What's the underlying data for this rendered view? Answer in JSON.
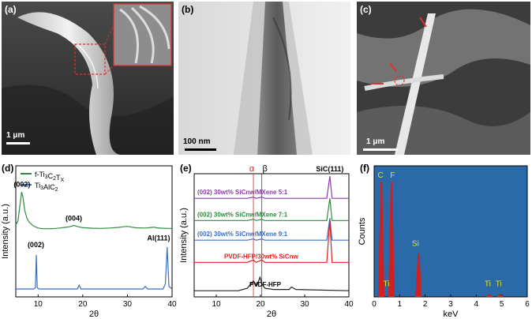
{
  "figure": {
    "panels": {
      "a": {
        "label": "(a)",
        "scale": "1 μm"
      },
      "b": {
        "label": "(b)",
        "scale": "100 nm"
      },
      "c": {
        "label": "(c)",
        "scale": "1 μm"
      },
      "d": {
        "label": "(d)"
      },
      "e": {
        "label": "(e)"
      },
      "f": {
        "label": "(f)"
      }
    },
    "colors": {
      "green": "#2e8b3f",
      "blue": "#3a6fc6",
      "purple": "#8a3fa8",
      "red": "#e02020",
      "black": "#222222",
      "eds_bg": "#2b6aa8",
      "eds_peak": "#d21f1f",
      "eds_label": "#f0e020"
    }
  },
  "chart_data": [
    {
      "type": "line",
      "panel": "d",
      "xlabel": "2θ",
      "ylabel": "Intensity (a.u.)",
      "xlim": [
        5,
        40
      ],
      "xticks": [
        10,
        20,
        30,
        40
      ],
      "legend": [
        "f-Ti3C2TX",
        "Ti3AlC2"
      ],
      "series": [
        {
          "name": "f-Ti3C2TX",
          "color": "#2e8b3f",
          "x": [
            5,
            5.5,
            6,
            6.3,
            6.6,
            7,
            7.5,
            8,
            9,
            10,
            11,
            12,
            13,
            14,
            15,
            16,
            17,
            18,
            19,
            20,
            22,
            24,
            26,
            28,
            29,
            30,
            31,
            32,
            34,
            35.5,
            36,
            36.5,
            37.5,
            39,
            40
          ],
          "y": [
            0.55,
            0.58,
            0.72,
            0.8,
            0.76,
            0.66,
            0.6,
            0.57,
            0.54,
            0.525,
            0.52,
            0.52,
            0.52,
            0.522,
            0.526,
            0.53,
            0.535,
            0.545,
            0.535,
            0.528,
            0.524,
            0.522,
            0.525,
            0.53,
            0.535,
            0.538,
            0.532,
            0.527,
            0.525,
            0.53,
            0.532,
            0.527,
            0.524,
            0.522,
            0.522
          ]
        },
        {
          "name": "Ti3AlC2",
          "color": "#3a6fc6",
          "x": [
            5,
            9,
            9.4,
            9.6,
            9.8,
            10.2,
            14,
            18.8,
            19.2,
            19.6,
            25,
            33.5,
            34,
            34.5,
            38,
            38.5,
            38.9,
            39.3,
            40
          ],
          "y": [
            0.06,
            0.06,
            0.07,
            0.32,
            0.07,
            0.06,
            0.06,
            0.06,
            0.09,
            0.06,
            0.06,
            0.06,
            0.08,
            0.06,
            0.06,
            0.1,
            0.38,
            0.08,
            0.06
          ]
        }
      ],
      "annotations": [
        {
          "text": "(002)",
          "x": 6.4,
          "y": 0.84
        },
        {
          "text": "(004)",
          "x": 18,
          "y": 0.58
        },
        {
          "text": "(002)",
          "x": 9.5,
          "y": 0.38
        },
        {
          "text": "Al(111)",
          "x": 37,
          "y": 0.43
        }
      ]
    },
    {
      "type": "line",
      "panel": "e",
      "xlabel": "2θ",
      "ylabel": "Intensity (a.u.)",
      "xlim": [
        5,
        40
      ],
      "xticks": [
        10,
        20,
        30,
        40
      ],
      "top_labels": [
        "α",
        "β",
        "SiC(111)"
      ],
      "reference_lines_x": [
        18.4,
        20.3
      ],
      "series": [
        {
          "name": "30wt% SiCnw/MXene 5:1",
          "color": "#8a3fa8",
          "x": [
            5,
            17,
            18.4,
            19,
            20.3,
            21,
            35,
            35.7,
            36.2,
            40
          ],
          "y": [
            0.8,
            0.8,
            0.81,
            0.8,
            0.81,
            0.8,
            0.8,
            0.98,
            0.8,
            0.8
          ]
        },
        {
          "name": "30wt% SiCnw/MXene 7:1",
          "color": "#2e8b3f",
          "x": [
            5,
            17,
            18.4,
            19,
            20.3,
            21,
            35,
            35.7,
            36.2,
            40
          ],
          "y": [
            0.62,
            0.62,
            0.63,
            0.62,
            0.63,
            0.62,
            0.62,
            0.8,
            0.62,
            0.62
          ]
        },
        {
          "name": "30wt% SiCnw/MXene 9:1",
          "color": "#3a6fc6",
          "x": [
            5,
            17,
            18.4,
            19,
            20.3,
            21,
            35,
            35.7,
            36.2,
            40
          ],
          "y": [
            0.46,
            0.46,
            0.47,
            0.46,
            0.47,
            0.46,
            0.46,
            0.64,
            0.46,
            0.46
          ]
        },
        {
          "name": "PVDF-HFP/30wt% SiCnw",
          "color": "#e02020",
          "x": [
            5,
            17,
            18.4,
            19,
            20.3,
            21,
            35,
            35.7,
            36.2,
            40
          ],
          "y": [
            0.28,
            0.28,
            0.3,
            0.28,
            0.3,
            0.28,
            0.28,
            0.62,
            0.28,
            0.28
          ]
        },
        {
          "name": "PVDF-HFP",
          "color": "#222222",
          "x": [
            5,
            15,
            17,
            18.4,
            19.2,
            19.9,
            20.4,
            21,
            23,
            26.5,
            27,
            28,
            40
          ],
          "y": [
            0.05,
            0.05,
            0.07,
            0.13,
            0.09,
            0.16,
            0.1,
            0.07,
            0.06,
            0.06,
            0.08,
            0.06,
            0.05
          ]
        }
      ],
      "series_labels": [
        "(002)  30wt% SiCnw/MXene 5:1",
        "(002)  30wt% SiCnw/MXene 7:1",
        "(002)  30wt% SiCnw/MXene 9:1",
        "PVDF-HFP/30wt% SiCnw",
        "PVDF-HFP"
      ]
    },
    {
      "type": "bar",
      "panel": "f",
      "xlabel": "keV",
      "ylabel": "Counts",
      "xlim": [
        0,
        6
      ],
      "xticks": [
        0,
        1,
        2,
        3,
        4,
        5,
        6
      ],
      "peaks": [
        {
          "element": "C",
          "energy": 0.28,
          "height": 0.88
        },
        {
          "element": "F",
          "energy": 0.68,
          "height": 0.88
        },
        {
          "element": "Si",
          "energy": 1.74,
          "height": 0.33
        },
        {
          "element": "Ti",
          "energy": 4.51,
          "height": 0.02
        },
        {
          "element": "Ti",
          "energy": 4.93,
          "height": 0.02
        }
      ],
      "peak_labels": [
        {
          "text": "C",
          "x": 0.25,
          "y": 0.91
        },
        {
          "text": "F",
          "x": 0.72,
          "y": 0.91
        },
        {
          "text": "Si",
          "x": 1.62,
          "y": 0.39
        },
        {
          "text": "Ti",
          "x": 0.48,
          "y": 0.08
        },
        {
          "text": "Ti",
          "x": 4.45,
          "y": 0.08
        },
        {
          "text": "Ti",
          "x": 4.88,
          "y": 0.08
        }
      ]
    }
  ]
}
